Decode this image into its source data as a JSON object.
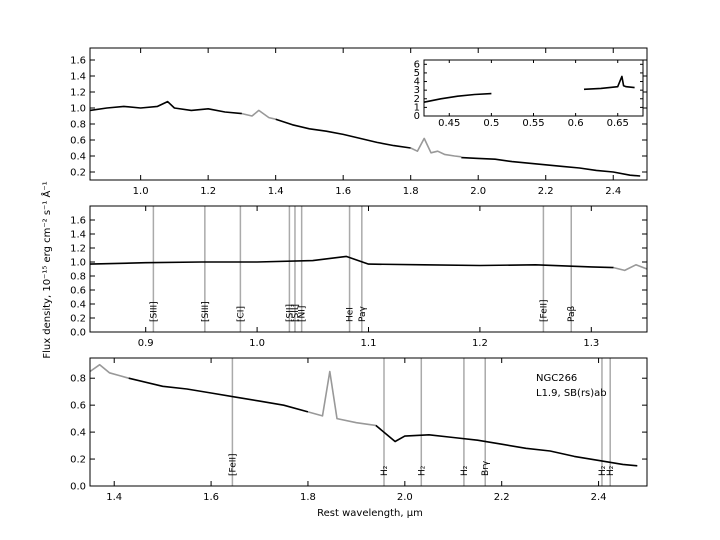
{
  "figure": {
    "ylabel": "Flux density, 10⁻¹⁵  erg  cm⁻²  s⁻¹  Å⁻¹",
    "xlabel": "Rest wavelength, μm",
    "annotation": {
      "object": "NGC266",
      "class": "L1.9,  SB(rs)ab"
    }
  },
  "chart_data": [
    {
      "type": "line",
      "id": "top",
      "xlim": [
        0.85,
        2.5
      ],
      "ylim": [
        0.1,
        1.75
      ],
      "xticks": [
        1.0,
        1.2,
        1.4,
        1.6,
        1.8,
        2.0,
        2.2,
        2.4
      ],
      "yticks": [
        0.2,
        0.4,
        0.6,
        0.8,
        1.0,
        1.2,
        1.4,
        1.6
      ],
      "series": [
        {
          "color": "#000000",
          "x": [
            0.85,
            0.9,
            0.95,
            1.0,
            1.05,
            1.08,
            1.1,
            1.15,
            1.2,
            1.25,
            1.3
          ],
          "y": [
            0.97,
            1.0,
            1.02,
            1.0,
            1.02,
            1.08,
            1.0,
            0.97,
            0.99,
            0.95,
            0.93
          ]
        },
        {
          "color": "#999999",
          "x": [
            1.3,
            1.33,
            1.35,
            1.38,
            1.4
          ],
          "y": [
            0.93,
            0.9,
            0.97,
            0.88,
            0.86
          ]
        },
        {
          "color": "#000000",
          "x": [
            1.4,
            1.45,
            1.5,
            1.55,
            1.6,
            1.65,
            1.7,
            1.75,
            1.8
          ],
          "y": [
            0.86,
            0.79,
            0.74,
            0.71,
            0.67,
            0.62,
            0.57,
            0.53,
            0.5
          ]
        },
        {
          "color": "#999999",
          "x": [
            1.8,
            1.82,
            1.84,
            1.86,
            1.88,
            1.9,
            1.93,
            1.95
          ],
          "y": [
            0.5,
            0.46,
            0.62,
            0.44,
            0.46,
            0.42,
            0.4,
            0.39
          ]
        },
        {
          "color": "#000000",
          "x": [
            1.95,
            2.0,
            2.05,
            2.1,
            2.15,
            2.2,
            2.25,
            2.3,
            2.35,
            2.4,
            2.45,
            2.48
          ],
          "y": [
            0.38,
            0.37,
            0.36,
            0.33,
            0.31,
            0.29,
            0.27,
            0.25,
            0.22,
            0.2,
            0.16,
            0.15
          ]
        }
      ]
    },
    {
      "type": "line",
      "id": "inset",
      "xlim": [
        0.42,
        0.68
      ],
      "ylim": [
        0,
        6.5
      ],
      "xticks": [
        0.45,
        0.5,
        0.55,
        0.6,
        0.65
      ],
      "yticks": [
        0,
        1,
        2,
        3,
        4,
        5,
        6
      ],
      "series": [
        {
          "color": "#000000",
          "x": [
            0.42,
            0.44,
            0.46,
            0.48,
            0.5
          ],
          "y": [
            1.6,
            2.0,
            2.3,
            2.5,
            2.6
          ]
        },
        {
          "color": "#000000",
          "x": [
            0.61,
            0.63,
            0.65,
            0.655,
            0.657,
            0.66,
            0.67
          ],
          "y": [
            3.1,
            3.2,
            3.4,
            4.6,
            3.5,
            3.4,
            3.3
          ]
        }
      ]
    },
    {
      "type": "line",
      "id": "middle",
      "xlim": [
        0.85,
        1.35
      ],
      "ylim": [
        0,
        1.8
      ],
      "xticks": [
        0.9,
        1.0,
        1.1,
        1.2,
        1.3
      ],
      "yticks": [
        0.0,
        0.2,
        0.4,
        0.6,
        0.8,
        1.0,
        1.2,
        1.4,
        1.6
      ],
      "lines": [
        {
          "x": 0.9069,
          "label": "[SIII]"
        },
        {
          "x": 0.9531,
          "label": "[SIII]"
        },
        {
          "x": 0.985,
          "label": "[CI]"
        },
        {
          "x": 1.029,
          "label": "[SII]"
        },
        {
          "x": 1.034,
          "label": "[SII]"
        },
        {
          "x": 1.04,
          "label": "[NI]"
        },
        {
          "x": 1.083,
          "label": "HeI"
        },
        {
          "x": 1.094,
          "label": "Paγ"
        },
        {
          "x": 1.257,
          "label": "[FeII]"
        },
        {
          "x": 1.282,
          "label": "Paβ"
        }
      ],
      "series": [
        {
          "color": "#000000",
          "x": [
            0.85,
            0.9,
            0.95,
            1.0,
            1.05,
            1.08,
            1.1,
            1.15,
            1.2,
            1.25,
            1.3,
            1.32
          ],
          "y": [
            0.97,
            0.99,
            1.0,
            1.0,
            1.02,
            1.08,
            0.97,
            0.96,
            0.95,
            0.96,
            0.93,
            0.92
          ]
        },
        {
          "color": "#999999",
          "x": [
            1.32,
            1.33,
            1.34,
            1.35
          ],
          "y": [
            0.92,
            0.88,
            0.96,
            0.9
          ]
        }
      ]
    },
    {
      "type": "line",
      "id": "bottom",
      "xlim": [
        1.35,
        2.5
      ],
      "ylim": [
        0,
        0.95
      ],
      "xticks": [
        1.4,
        1.6,
        1.8,
        2.0,
        2.2,
        2.4
      ],
      "yticks": [
        0.0,
        0.2,
        0.4,
        0.6,
        0.8
      ],
      "lines": [
        {
          "x": 1.644,
          "label": "[FeII]"
        },
        {
          "x": 1.957,
          "label": "H₂"
        },
        {
          "x": 2.034,
          "label": "H₂"
        },
        {
          "x": 2.122,
          "label": "H₂"
        },
        {
          "x": 2.166,
          "label": "Brγ"
        },
        {
          "x": 2.407,
          "label": "H₂"
        },
        {
          "x": 2.424,
          "label": "H₂"
        }
      ],
      "series": [
        {
          "color": "#999999",
          "x": [
            1.35,
            1.37,
            1.39,
            1.41,
            1.43
          ],
          "y": [
            0.85,
            0.9,
            0.84,
            0.82,
            0.8
          ]
        },
        {
          "color": "#000000",
          "x": [
            1.43,
            1.5,
            1.55,
            1.6,
            1.65,
            1.7,
            1.75,
            1.8
          ],
          "y": [
            0.8,
            0.74,
            0.72,
            0.69,
            0.66,
            0.63,
            0.6,
            0.55
          ]
        },
        {
          "color": "#999999",
          "x": [
            1.8,
            1.83,
            1.845,
            1.86,
            1.9,
            1.94
          ],
          "y": [
            0.55,
            0.52,
            0.85,
            0.5,
            0.47,
            0.45
          ]
        },
        {
          "color": "#000000",
          "x": [
            1.94,
            1.96,
            1.98,
            2.0,
            2.05,
            2.1,
            2.15,
            2.2,
            2.25,
            2.3,
            2.35,
            2.4,
            2.45,
            2.48
          ],
          "y": [
            0.45,
            0.39,
            0.33,
            0.37,
            0.38,
            0.36,
            0.34,
            0.31,
            0.28,
            0.26,
            0.22,
            0.19,
            0.16,
            0.15
          ]
        }
      ]
    }
  ]
}
